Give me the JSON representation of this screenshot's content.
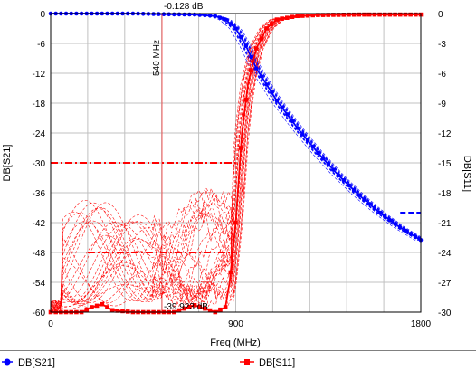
{
  "chart_data": {
    "type": "line",
    "xlabel": "Freq (MHz)",
    "x_ticks": [
      "0",
      "900",
      "1800"
    ],
    "xlim": [
      0,
      1800
    ],
    "left_axis": {
      "label": "DB[S21]",
      "ylim": [
        -60,
        0
      ],
      "ticks": [
        "0",
        "-6",
        "-12",
        "-18",
        "-24",
        "-30",
        "-36",
        "-42",
        "-48",
        "-54",
        "-60"
      ]
    },
    "right_axis": {
      "label": "DB[S11]",
      "ylim": [
        -30,
        0
      ],
      "ticks": [
        "0",
        "-3",
        "-6",
        "-9",
        "-12",
        "-15",
        "-18",
        "-21",
        "-24",
        "-27",
        "-30"
      ]
    },
    "grid": true,
    "marker": {
      "x": 540,
      "label": "540 MHz",
      "s21_readout": "-0.128 dB",
      "s11_readout": "-39.923 dB"
    },
    "series": [
      {
        "name": "DB[S21]",
        "axis": "left",
        "color": "#0000ff",
        "marker": "circle",
        "x": [
          0,
          200,
          400,
          540,
          700,
          800,
          850,
          900,
          950,
          1000,
          1100,
          1200,
          1300,
          1400,
          1500,
          1600,
          1700,
          1800
        ],
        "y": [
          0,
          0,
          0,
          -0.13,
          -0.2,
          -0.5,
          -1.2,
          -3,
          -6.5,
          -11,
          -17.5,
          -23,
          -28,
          -32.5,
          -36.5,
          -40,
          -43,
          -45.5
        ]
      },
      {
        "name": "DB[S11]",
        "axis": "right",
        "color": "#ff0000",
        "marker": "square",
        "x": [
          0,
          50,
          100,
          150,
          200,
          250,
          300,
          400,
          500,
          600,
          700,
          800,
          850,
          870,
          900,
          930,
          960,
          1000,
          1050,
          1100,
          1200,
          1300,
          1500,
          1800
        ],
        "y": [
          -30,
          -30,
          -30,
          -30,
          -29.5,
          -29.2,
          -29.8,
          -30,
          -30,
          -30,
          -29.3,
          -30,
          -29.5,
          -27,
          -21,
          -12,
          -7,
          -3.5,
          -1.5,
          -0.6,
          -0.25,
          -0.15,
          -0.1,
          -0.1
        ]
      }
    ],
    "spec_lines": [
      {
        "axis": "left",
        "color": "#ff0000",
        "y": -30,
        "x": [
          0,
          900
        ],
        "style": "dash-dot"
      },
      {
        "axis": "left",
        "color": "#ff0000",
        "y": -48,
        "x": [
          180,
          900
        ],
        "style": "dash-dot"
      },
      {
        "axis": "left",
        "color": "#0000ff",
        "y": -40,
        "x": [
          1700,
          1800
        ],
        "style": "dash"
      }
    ],
    "legend": {
      "placement": "bottom",
      "items": [
        {
          "label": "DB[S21]",
          "color": "#0000ff",
          "marker": "circle"
        },
        {
          "label": "DB[S11]",
          "color": "#ff0000",
          "marker": "square"
        }
      ]
    }
  }
}
